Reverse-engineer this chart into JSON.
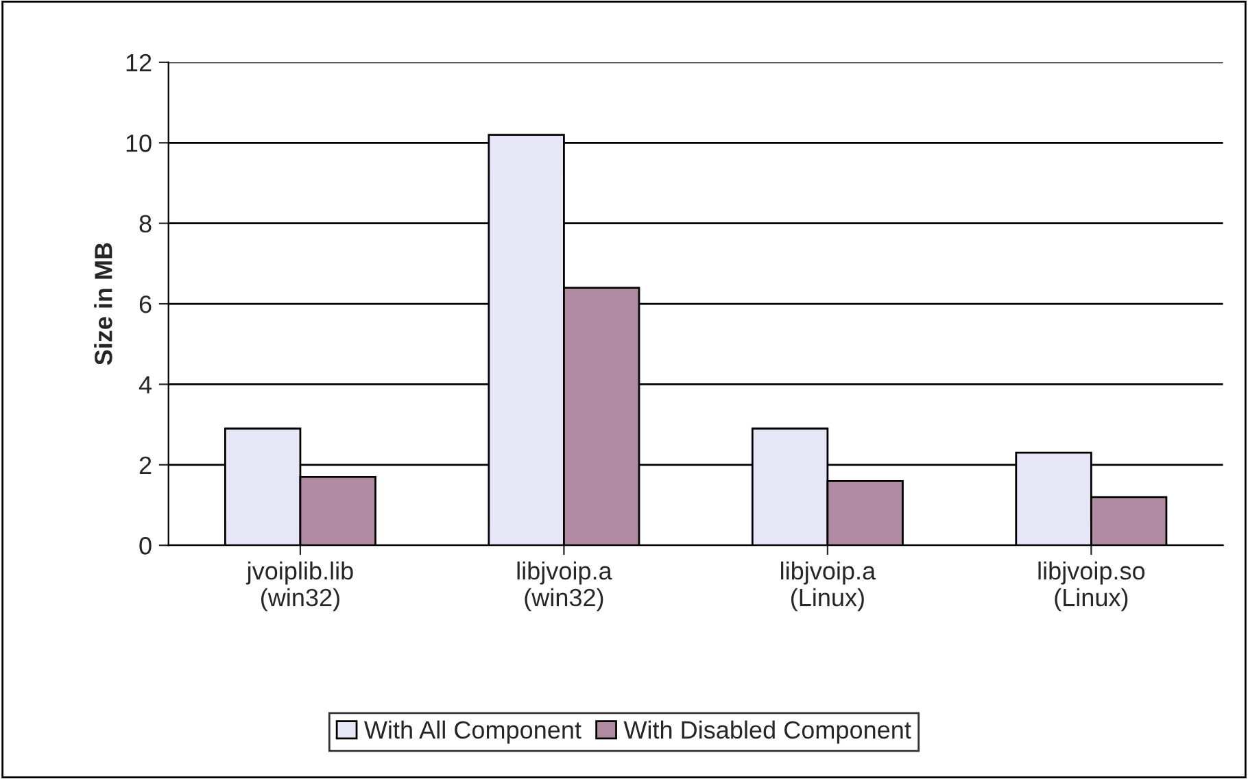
{
  "chart_data": {
    "type": "bar",
    "ylabel": "Size in MB",
    "categories": [
      "jvoiplib.lib\n(win32)",
      "libjvoip.a\n(win32)",
      "libjvoip.a\n(Linux)",
      "libjvoip.so\n(Linux)"
    ],
    "series": [
      {
        "name": "With All Component",
        "color": "#e6e6f6",
        "values": [
          2.9,
          10.2,
          2.9,
          2.3
        ]
      },
      {
        "name": "With Disabled Component",
        "color": "#b08aa0",
        "values": [
          1.7,
          6.4,
          1.6,
          1.2
        ]
      }
    ],
    "ylim": [
      0,
      12
    ],
    "yticks": [
      0,
      2,
      4,
      6,
      8,
      10,
      12
    ],
    "grid": "y",
    "legend": "bottom"
  }
}
